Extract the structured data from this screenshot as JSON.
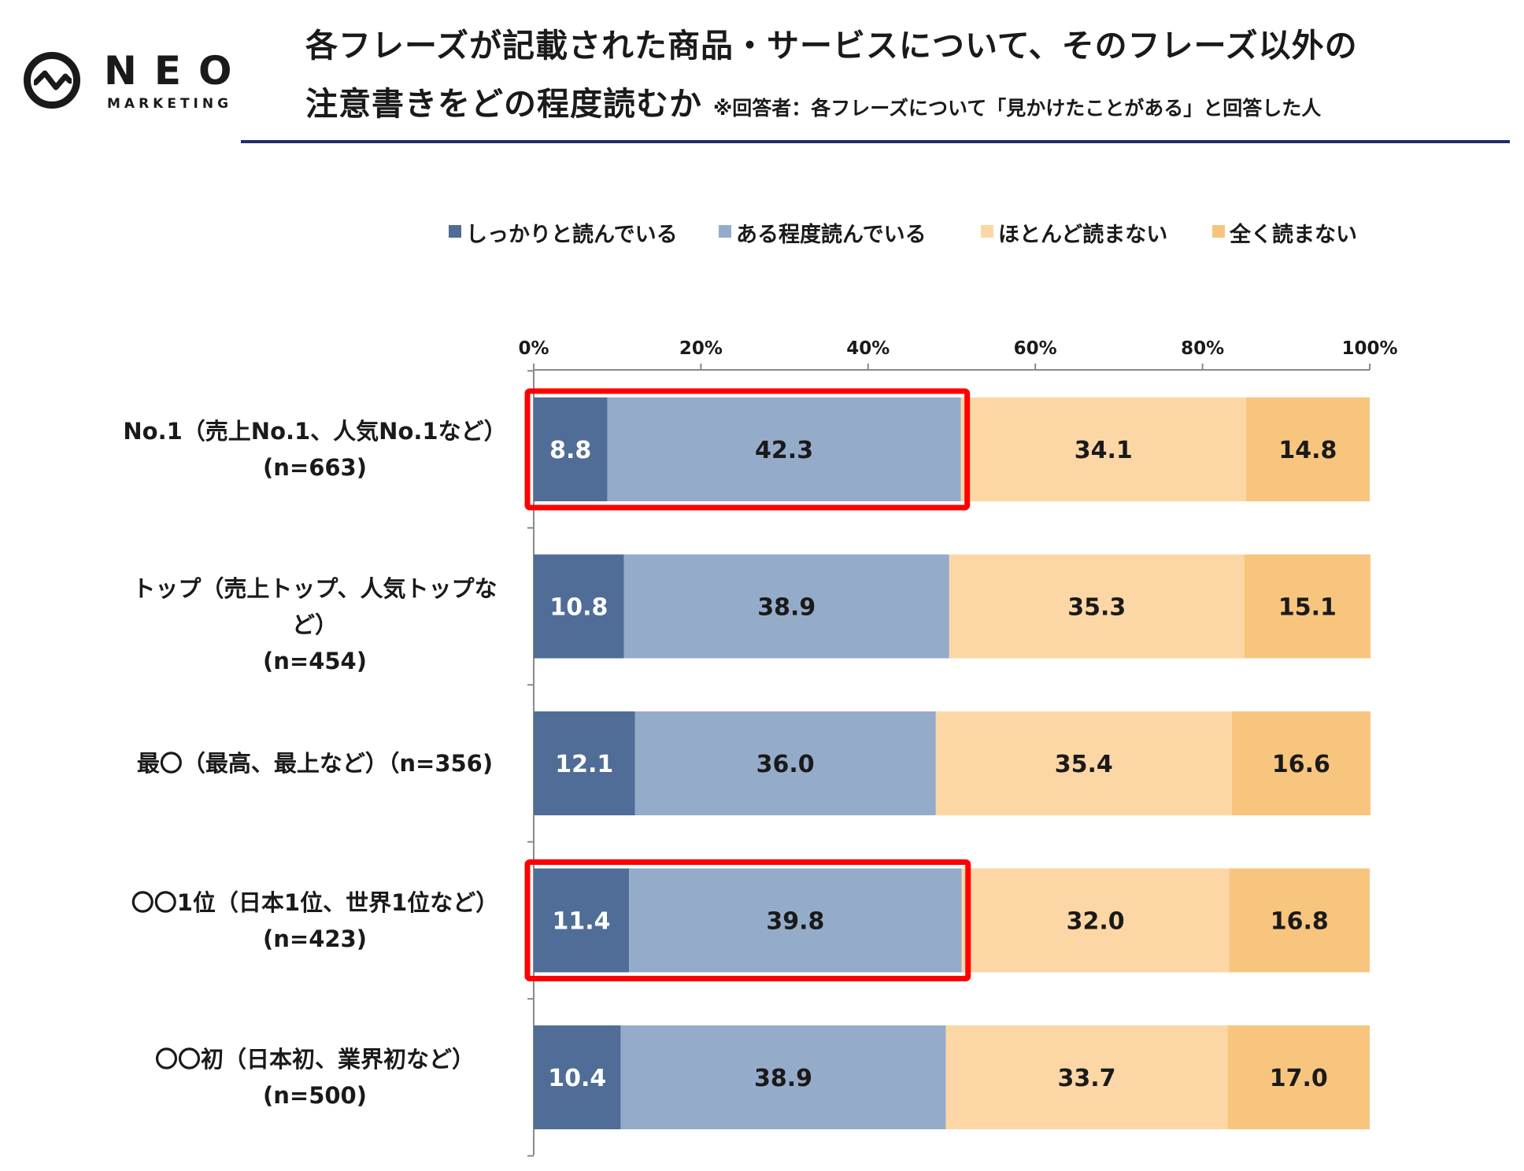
{
  "logo": {
    "word": "NEO",
    "sub": "MARKETING"
  },
  "title": {
    "line1": "各フレーズが記載された商品・サービスについて、そのフレーズ以外の",
    "line2": "注意書きをどの程度読むか",
    "note": "※回答者：各フレーズについて「見かけたことがある」と回答した人"
  },
  "chart_data": {
    "type": "bar",
    "orientation": "horizontal",
    "stacked": true,
    "xlim": [
      0,
      100
    ],
    "tick_labels": [
      "0%",
      "20%",
      "40%",
      "60%",
      "80%",
      "100%"
    ],
    "categories": [
      [
        "No.1（売上No.1、人気No.1など）",
        "(n=663)"
      ],
      [
        "トップ（売上トップ、人気トップなど）",
        "(n=454)"
      ],
      [
        "最〇（最高、最上など）（n=356)"
      ],
      [
        "〇〇1位（日本1位、世界1位など）",
        "(n=423)"
      ],
      [
        "〇〇初（日本初、業界初など）",
        "(n=500)"
      ]
    ],
    "series": [
      {
        "name": "しっかりと読んでいる",
        "color": "#4f6d97",
        "values": [
          8.8,
          10.8,
          12.1,
          11.4,
          10.4
        ]
      },
      {
        "name": "ある程度読んでいる",
        "color": "#95abca",
        "values": [
          42.3,
          38.9,
          36.0,
          39.8,
          38.9
        ]
      },
      {
        "name": "ほとんど読まない",
        "color": "#fcd7a5",
        "values": [
          34.1,
          35.3,
          35.4,
          32.0,
          33.7
        ]
      },
      {
        "name": "全く読まない",
        "color": "#f8c57e",
        "values": [
          14.8,
          15.1,
          16.6,
          16.8,
          17.0
        ]
      }
    ],
    "highlighted_rows": [
      0,
      3
    ],
    "highlight_color": "#ff0000",
    "legend_position": "top",
    "grid": false
  }
}
